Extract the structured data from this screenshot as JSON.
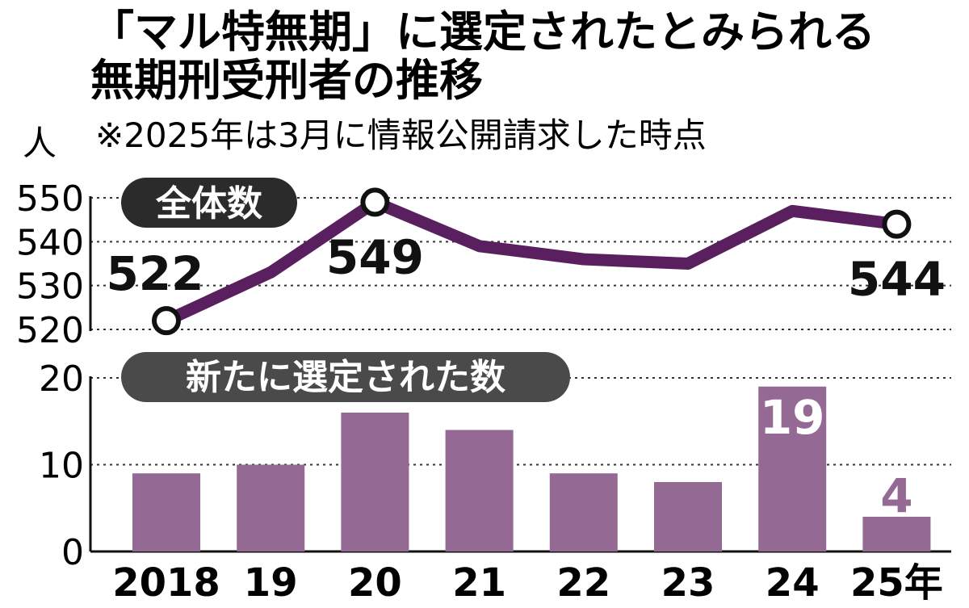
{
  "title_lines": [
    "「マル特無期」に選定されたとみられる",
    "無期刑受刑者の推移"
  ],
  "note": "※2025年は3月に情報公開請求した時点",
  "colors": {
    "line": "#5a1f5e",
    "bar": "#946a95",
    "pill": "#2b2b2b",
    "pill_light": "#4a4a4a",
    "text": "#111111"
  },
  "chart_data": [
    {
      "type": "line",
      "title": "全体数",
      "ylabel": "人",
      "categories": [
        "2018",
        "19",
        "20",
        "21",
        "22",
        "23",
        "24",
        "25年"
      ],
      "values": [
        522,
        533,
        549,
        539,
        536,
        535,
        547,
        544
      ],
      "ylim": [
        520,
        550
      ],
      "yticks": [
        "520",
        "530",
        "540",
        "550"
      ],
      "labeled_points": [
        {
          "index": 0,
          "label": "522"
        },
        {
          "index": 2,
          "label": "549"
        },
        {
          "index": 7,
          "label": "544"
        }
      ],
      "grid": true
    },
    {
      "type": "bar",
      "title": "新たに選定された数",
      "categories": [
        "2018",
        "19",
        "20",
        "21",
        "22",
        "23",
        "24",
        "25年"
      ],
      "values": [
        9,
        10,
        16,
        14,
        9,
        8,
        19,
        4
      ],
      "ylim": [
        0,
        20
      ],
      "yticks": [
        "0",
        "10",
        "20"
      ],
      "data_labels": [
        {
          "index": 6,
          "label": "19"
        },
        {
          "index": 7,
          "label": "4"
        }
      ],
      "grid": true
    }
  ]
}
